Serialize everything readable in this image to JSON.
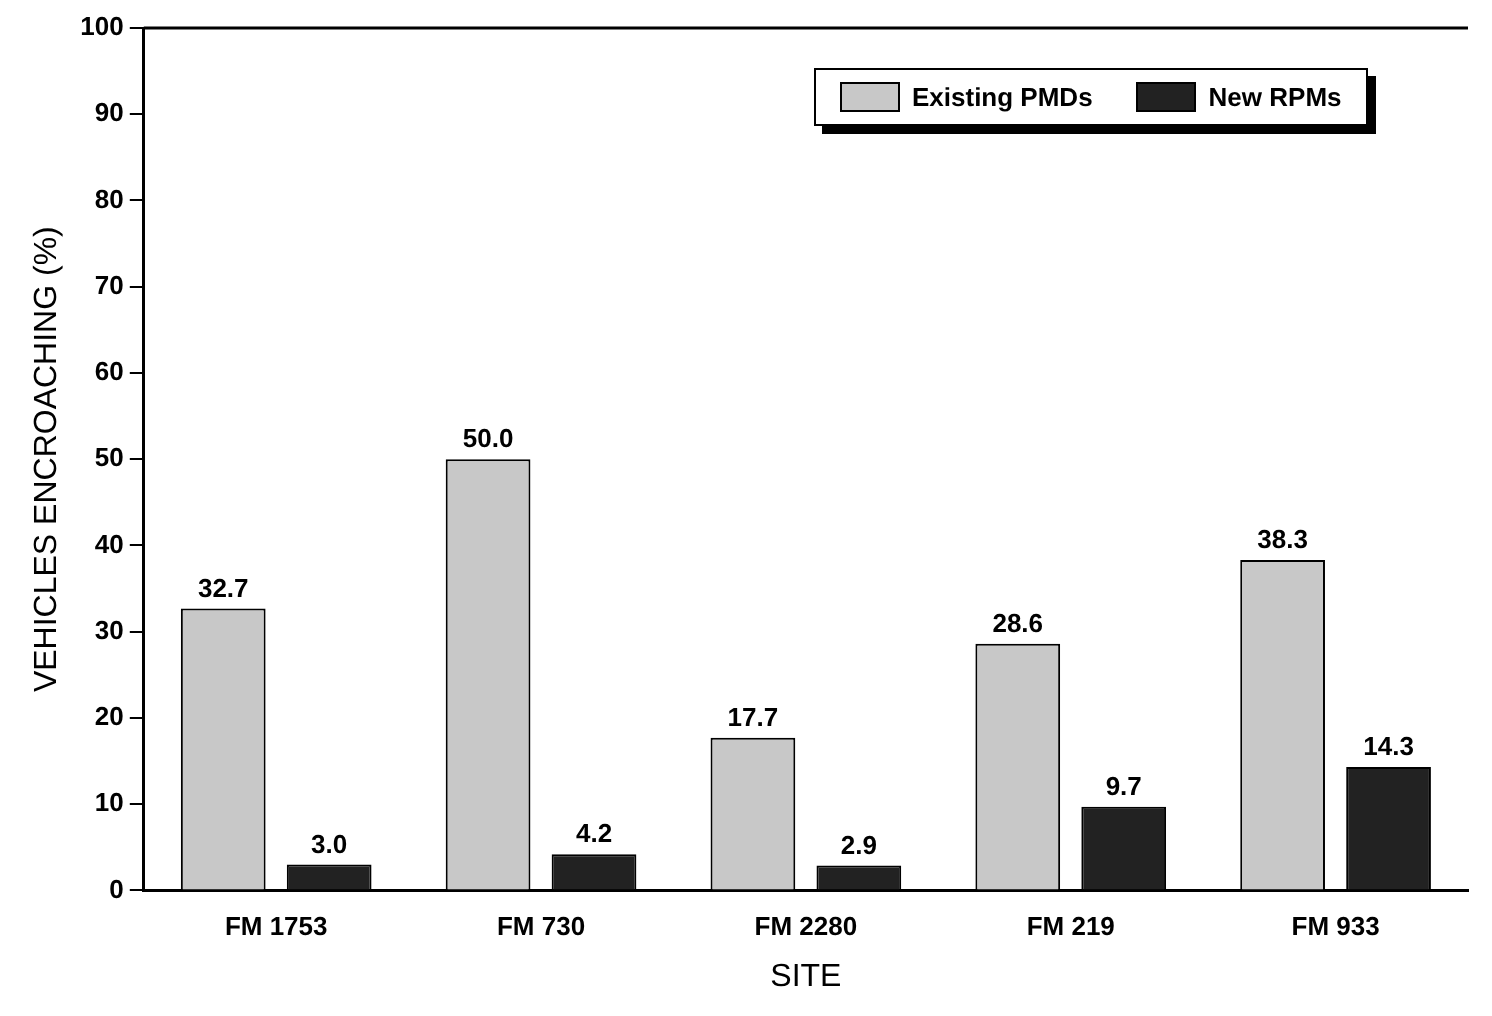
{
  "chart_data": {
    "type": "bar",
    "xlabel": "SITE",
    "ylabel": "VEHICLES ENCROACHING (%)",
    "categories": [
      "FM 1753",
      "FM 730",
      "FM 2280",
      "FM 219",
      "FM 933"
    ],
    "series": [
      {
        "name": "Existing PMDs",
        "color": "#c8c8c8",
        "values": [
          32.7,
          50.0,
          17.7,
          28.6,
          38.3
        ],
        "value_labels": [
          "32.7",
          "50.0",
          "17.7",
          "28.6",
          "38.3"
        ]
      },
      {
        "name": "New RPMs",
        "color": "#222222",
        "values": [
          3.0,
          4.2,
          2.9,
          9.7,
          14.3
        ],
        "value_labels": [
          "3.0",
          "4.2",
          "2.9",
          "9.7",
          "14.3"
        ]
      }
    ],
    "ylim": [
      0,
      100
    ],
    "yticks": [
      0,
      10,
      20,
      30,
      40,
      50,
      60,
      70,
      80,
      90,
      100
    ],
    "grid": false,
    "legend": "top right"
  }
}
